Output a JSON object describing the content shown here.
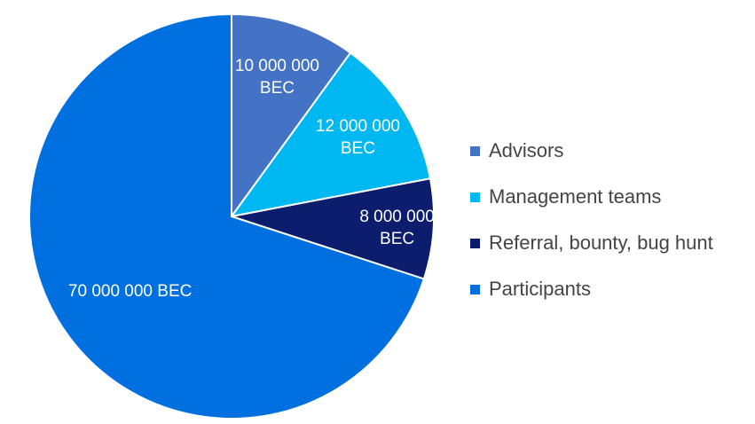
{
  "chart_data": {
    "type": "pie",
    "categories": [
      "Advisors",
      "Management teams",
      "Referral, bounty, bug hunt",
      "Participants"
    ],
    "values": [
      10000000,
      12000000,
      8000000,
      70000000
    ],
    "data_labels": [
      [
        "10 000 000",
        "BEC"
      ],
      [
        "12 000 000",
        "BEC"
      ],
      [
        "8 000 000",
        "BEC"
      ],
      [
        "70 000 000 BEC"
      ]
    ],
    "colors": [
      "#4472c4",
      "#00b8f1",
      "#0d1d6e",
      "#0070e0"
    ],
    "start_angle_deg": 0,
    "direction": "clockwise",
    "legend_placement": "right"
  }
}
